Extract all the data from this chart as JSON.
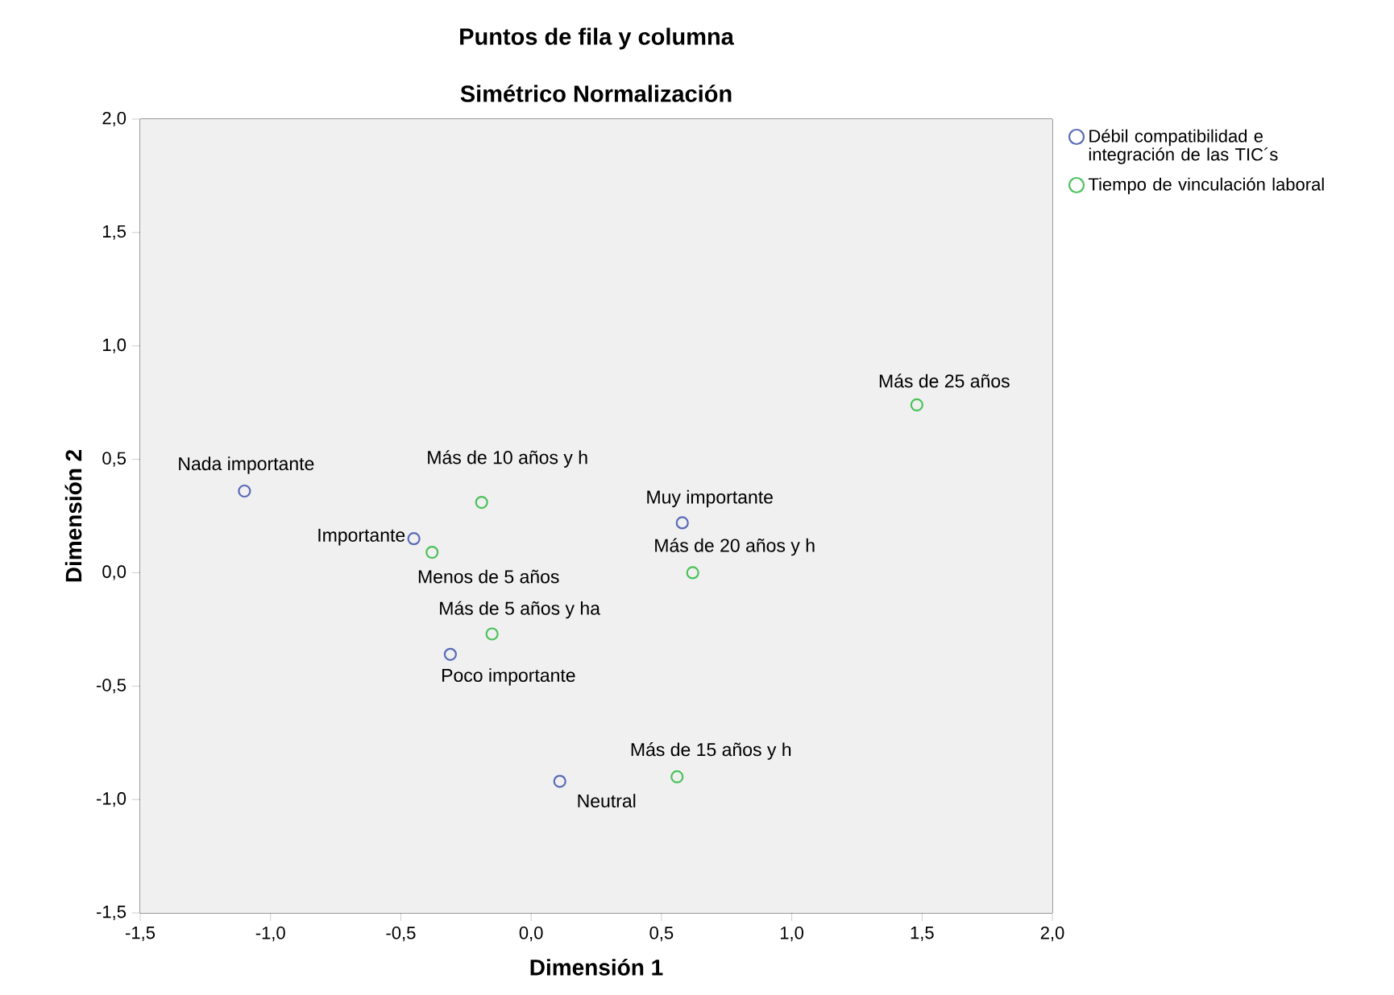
{
  "chart_data": {
    "type": "scatter",
    "title": "Puntos de fila y columna",
    "subtitle": "Simétrico Normalización",
    "xlabel": "Dimensión 1",
    "ylabel": "Dimensión 2",
    "xlim": [
      -1.5,
      2.0
    ],
    "ylim": [
      -1.5,
      2.0
    ],
    "xticks": [
      {
        "value": -1.5,
        "label": "-1,5"
      },
      {
        "value": -1.0,
        "label": "-1,0"
      },
      {
        "value": -0.5,
        "label": "-0,5"
      },
      {
        "value": 0.0,
        "label": "0,0"
      },
      {
        "value": 0.5,
        "label": "0,5"
      },
      {
        "value": 1.0,
        "label": "1,0"
      },
      {
        "value": 1.5,
        "label": "1,5"
      },
      {
        "value": 2.0,
        "label": "2,0"
      }
    ],
    "yticks": [
      {
        "value": -1.5,
        "label": "-1,5"
      },
      {
        "value": -1.0,
        "label": "-1,0"
      },
      {
        "value": -0.5,
        "label": "-0,5"
      },
      {
        "value": 0.0,
        "label": "0,0"
      },
      {
        "value": 0.5,
        "label": "0,5"
      },
      {
        "value": 1.0,
        "label": "1,0"
      },
      {
        "value": 1.5,
        "label": "1,5"
      },
      {
        "value": 2.0,
        "label": "2,0"
      }
    ],
    "marker": "circle",
    "legend": "top right",
    "grid": false,
    "series": [
      {
        "name": "Débil compatibilidad e integración de las TIC´s",
        "color": "#5a6bb8",
        "x": [
          -1.1,
          -0.45,
          0.58,
          -0.31,
          0.11
        ],
        "values": [
          0.36,
          0.15,
          0.22,
          -0.36,
          -0.92
        ]
      },
      {
        "name": "Tiempo de vinculación laboral",
        "color": "#4cc25a",
        "x": [
          1.48,
          -0.19,
          -0.38,
          0.62,
          -0.15,
          0.56
        ],
        "values": [
          0.74,
          0.31,
          0.09,
          0.0,
          -0.27,
          -0.9
        ]
      }
    ],
    "annotations": [
      {
        "text": "Nada importante",
        "x": -1.1,
        "y": 0.36
      },
      {
        "text": "Importante",
        "x": -0.45,
        "y": 0.15
      },
      {
        "text": "Muy importante",
        "x": 0.58,
        "y": 0.22
      },
      {
        "text": "Poco importante",
        "x": -0.31,
        "y": -0.36
      },
      {
        "text": "Neutral",
        "x": 0.11,
        "y": -0.92
      },
      {
        "text": "Más de 25 años",
        "x": 1.48,
        "y": 0.74
      },
      {
        "text": "Más de 10 años y h",
        "x": -0.19,
        "y": 0.31
      },
      {
        "text": "Menos de 5 años",
        "x": -0.38,
        "y": 0.09
      },
      {
        "text": "Más de 20 años y h",
        "x": 0.62,
        "y": 0.0
      },
      {
        "text": "Más de 5 años y ha",
        "x": -0.15,
        "y": -0.27
      },
      {
        "text": "Más de 15 años y h",
        "x": 0.56,
        "y": -0.9
      }
    ]
  }
}
